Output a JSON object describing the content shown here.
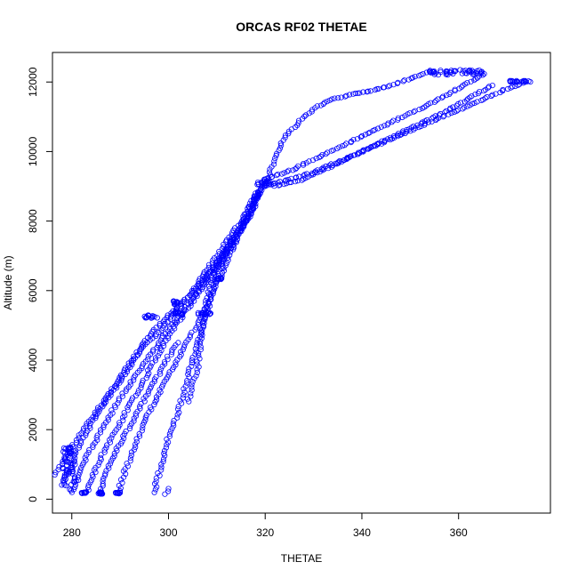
{
  "chart_data": {
    "type": "scatter",
    "title": "ORCAS RF02 THETAE",
    "xlabel": "THETAE",
    "ylabel": "Altitude (m)",
    "xlim": [
      276,
      379
    ],
    "ylim": [
      -400,
      12850
    ],
    "x_ticks": [
      280,
      300,
      320,
      340,
      360
    ],
    "y_ticks": [
      0,
      2000,
      4000,
      6000,
      8000,
      10000,
      12000
    ],
    "grid": false,
    "marker": "open-circle",
    "color": "#0000ff",
    "profiles": [
      {
        "x": [
          276.5,
          278,
          279,
          280,
          282,
          284,
          286,
          288,
          290,
          292,
          294,
          296,
          298,
          301,
          304,
          307,
          310,
          313,
          316,
          318,
          320
        ],
        "y": [
          700,
          1000,
          1300,
          1500,
          1900,
          2300,
          2700,
          3100,
          3500,
          3900,
          4300,
          4700,
          5000,
          5400,
          5800,
          6300,
          6800,
          7400,
          8000,
          8600,
          9100
        ]
      },
      {
        "x": [
          278,
          279.5,
          281,
          283,
          285,
          287,
          289,
          291,
          293,
          295,
          298,
          301,
          304,
          307,
          310,
          313,
          316,
          318,
          320
        ],
        "y": [
          400,
          900,
          1400,
          1900,
          2400,
          2800,
          3200,
          3600,
          4000,
          4400,
          4800,
          5300,
          5800,
          6400,
          7000,
          7600,
          8200,
          8700,
          9200
        ]
      },
      {
        "x": [
          280,
          281.5,
          283,
          285,
          287,
          289,
          291,
          293,
          295,
          297,
          299,
          302,
          305,
          308,
          311,
          314,
          317,
          319
        ],
        "y": [
          200,
          700,
          1200,
          1700,
          2200,
          2700,
          3100,
          3500,
          3900,
          4300,
          4700,
          5200,
          5800,
          6400,
          7000,
          7600,
          8200,
          8800
        ]
      },
      {
        "x": [
          283,
          284.5,
          286,
          288,
          290,
          292,
          294,
          296,
          298,
          300,
          303,
          306,
          309,
          312,
          315,
          317,
          319
        ],
        "y": [
          200,
          700,
          1200,
          1700,
          2200,
          2700,
          3200,
          3700,
          4200,
          4700,
          5300,
          5900,
          6500,
          7100,
          7700,
          8300,
          8900
        ]
      },
      {
        "x": [
          286,
          286.5,
          288,
          290,
          292,
          294,
          296,
          298,
          300,
          302
        ],
        "y": [
          150,
          600,
          1100,
          1600,
          2100,
          2600,
          3100,
          3600,
          4100,
          4500
        ]
      },
      {
        "x": [
          289.5,
          291,
          293,
          295,
          297,
          299,
          301,
          303,
          305,
          307,
          309,
          311,
          313,
          315,
          317,
          319
        ],
        "y": [
          150,
          800,
          1500,
          2200,
          2800,
          3300,
          3800,
          4300,
          4800,
          5300,
          5900,
          6500,
          7100,
          7700,
          8300,
          8900
        ]
      },
      {
        "x": [
          297,
          298.5,
          300,
          302,
          303,
          304,
          305,
          306,
          307,
          308,
          309,
          310,
          312,
          314,
          316,
          318
        ],
        "y": [
          200,
          1000,
          1800,
          2500,
          3000,
          3500,
          4000,
          4500,
          5000,
          5400,
          5900,
          6400,
          7000,
          7600,
          8200,
          8800
        ]
      },
      {
        "x": [
          299.5,
          300
        ],
        "y": [
          150,
          300
        ]
      },
      {
        "x": [
          304,
          305,
          306,
          306.5,
          307,
          307.5,
          308,
          309,
          311,
          313
        ],
        "y": [
          2800,
          3300,
          3800,
          4300,
          4800,
          5300,
          5800,
          6300,
          6900,
          7500
        ]
      },
      {
        "x": [
          320,
          325,
          330,
          335,
          340,
          345,
          350,
          355,
          360,
          365,
          370,
          374
        ],
        "y": [
          9000,
          9200,
          9400,
          9700,
          10000,
          10300,
          10600,
          10900,
          11200,
          11500,
          11800,
          12000
        ]
      },
      {
        "x": [
          320,
          326,
          332,
          338,
          344,
          350,
          356,
          361,
          365
        ],
        "y": [
          9200,
          9500,
          9900,
          10300,
          10700,
          11100,
          11500,
          11900,
          12200
        ]
      },
      {
        "x": [
          322,
          328,
          334,
          340,
          346,
          352,
          358,
          363,
          367
        ],
        "y": [
          9000,
          9200,
          9600,
          10000,
          10400,
          10800,
          11200,
          11600,
          11900
        ]
      },
      {
        "x": [
          320,
          321,
          322,
          323,
          324,
          326,
          328,
          331,
          334,
          338,
          342,
          346,
          350,
          354
        ],
        "y": [
          9000,
          9400,
          9800,
          10100,
          10400,
          10700,
          11000,
          11300,
          11500,
          11650,
          11750,
          11900,
          12100,
          12300
        ]
      }
    ],
    "clusters": [
      {
        "x": [
          354,
          366
        ],
        "y": [
          12200,
          12350
        ]
      },
      {
        "x": [
          370,
          375
        ],
        "y": [
          12000,
          12050
        ]
      },
      {
        "x": [
          278,
          281
        ],
        "y": [
          150,
          1500
        ]
      },
      {
        "x": [
          278,
          280
        ],
        "y": [
          1300,
          1500
        ]
      },
      {
        "x": [
          282,
          283
        ],
        "y": [
          150,
          200
        ]
      },
      {
        "x": [
          285.5,
          286.5
        ],
        "y": [
          150,
          200
        ]
      },
      {
        "x": [
          289,
          290
        ],
        "y": [
          150,
          200
        ]
      },
      {
        "x": [
          295,
          298
        ],
        "y": [
          5200,
          5300
        ]
      },
      {
        "x": [
          301,
          303
        ],
        "y": [
          5300,
          5400
        ]
      },
      {
        "x": [
          306,
          309
        ],
        "y": [
          5300,
          5400
        ]
      },
      {
        "x": [
          301,
          302
        ],
        "y": [
          5600,
          5700
        ]
      },
      {
        "x": [
          310,
          311
        ],
        "y": [
          6300,
          6400
        ]
      },
      {
        "x": [
          318,
          321
        ],
        "y": [
          9050,
          9150
        ]
      }
    ]
  }
}
